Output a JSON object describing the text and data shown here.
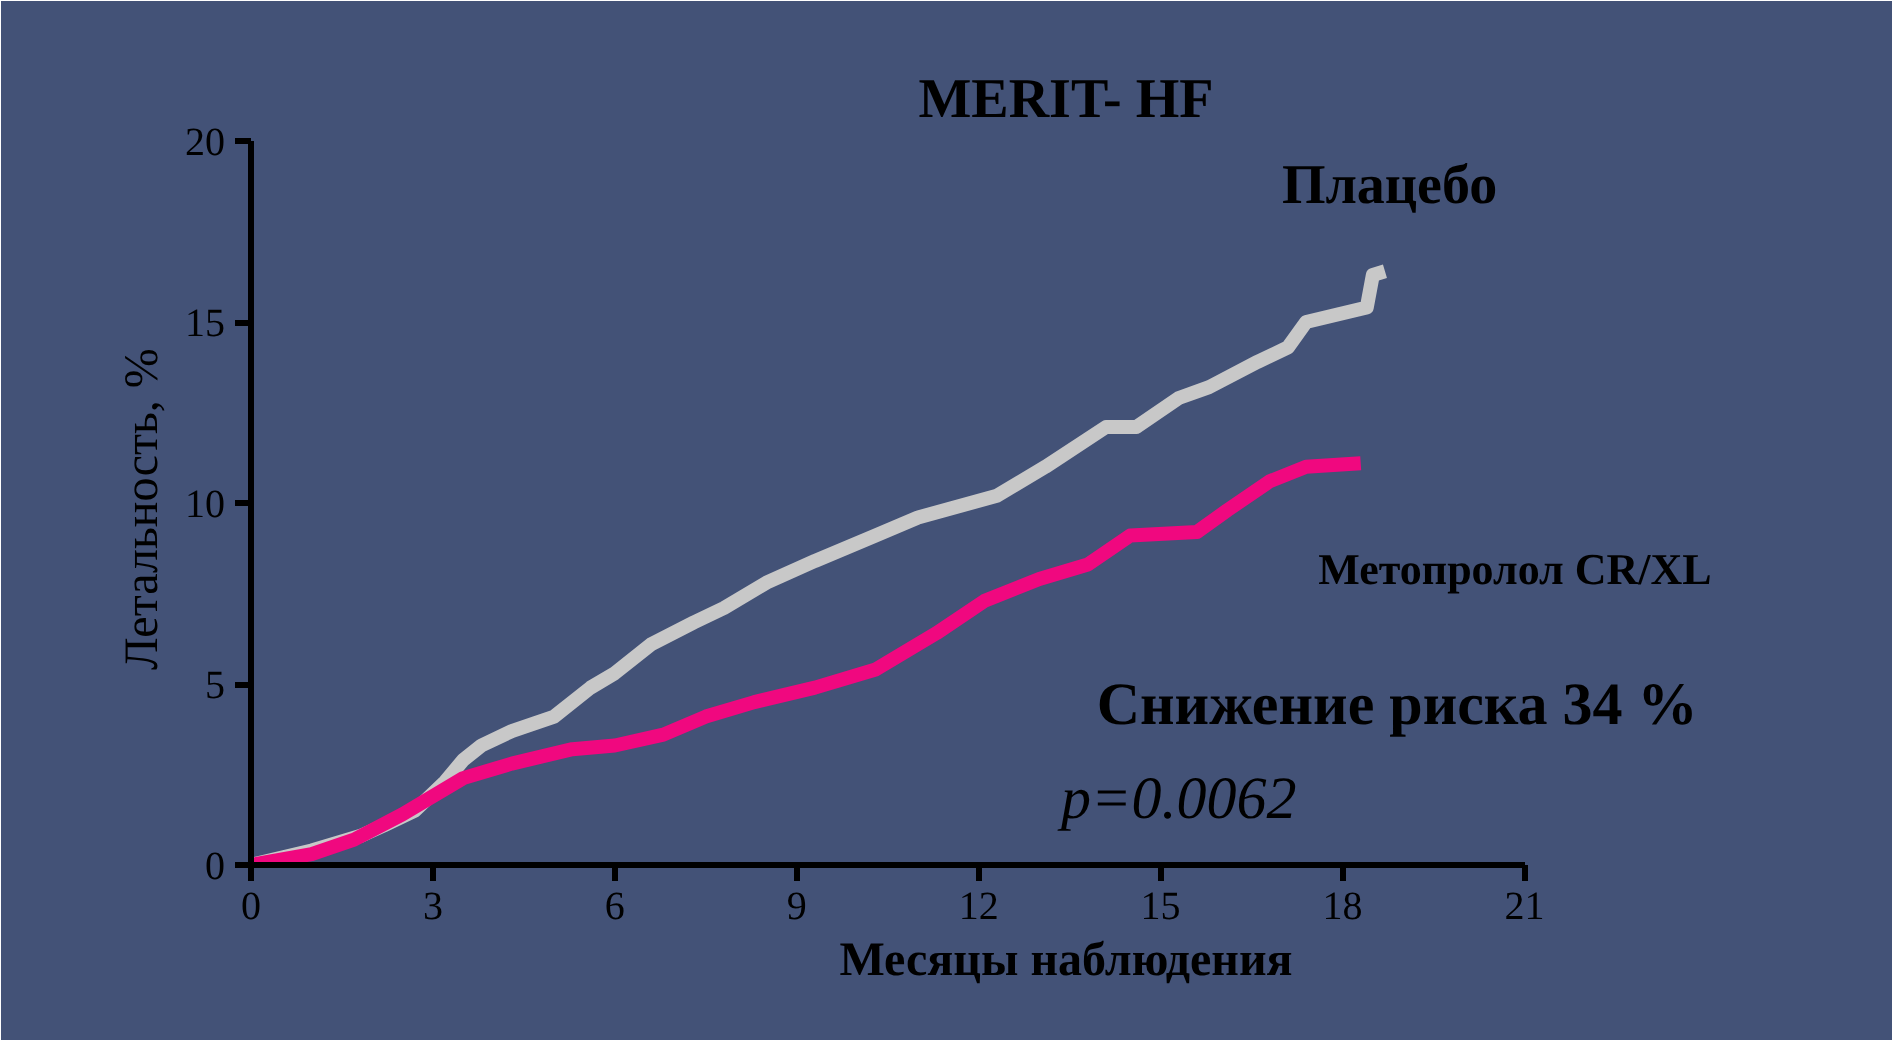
{
  "chart_data": {
    "type": "line",
    "title": "MERIT- HF",
    "xlabel": "Месяцы наблюдения",
    "ylabel": "Летальность,  %",
    "xlim": [
      0,
      21
    ],
    "xticks": [
      0,
      3,
      6,
      9,
      12,
      15,
      18,
      21
    ],
    "ylim": [
      0,
      20
    ],
    "yticks": [
      0,
      5,
      10,
      15,
      20
    ],
    "grid": false,
    "marker": "none",
    "line_style": "solid",
    "series": [
      {
        "name": "Плацебо",
        "color": "#c8c8c8",
        "x": [
          0,
          1,
          1.8,
          2.2,
          2.7,
          3.2,
          3.5,
          3.8,
          4.3,
          5,
          5.6,
          6,
          6.6,
          7.3,
          7.8,
          8.5,
          9.3,
          10.3,
          11,
          12.3,
          13.1,
          14.1,
          14.6,
          15.3,
          15.8,
          16.6,
          17.1,
          17.4,
          18.4,
          18.5,
          18.7
        ],
        "values": [
          0,
          0.4,
          0.8,
          1.1,
          1.5,
          2.3,
          2.9,
          3.3,
          3.7,
          4.1,
          4.9,
          5.3,
          6.1,
          6.7,
          7.1,
          7.8,
          8.4,
          9.1,
          9.6,
          10.2,
          11,
          12.1,
          12.1,
          12.9,
          13.2,
          13.9,
          14.3,
          15,
          15.4,
          16.3,
          16.4
        ]
      },
      {
        "name": "Метопролол CR/XL",
        "color": "#f0087f",
        "x": [
          0,
          1,
          1.7,
          2.5,
          3.5,
          4.3,
          5.3,
          6,
          6.8,
          7.5,
          8.3,
          9.3,
          10.3,
          11.3,
          12.1,
          13,
          13.8,
          14.5,
          15.6,
          16.1,
          16.8,
          17.4,
          18.3
        ],
        "values": [
          0,
          0.3,
          0.7,
          1.4,
          2.4,
          2.8,
          3.2,
          3.3,
          3.6,
          4.1,
          4.5,
          4.9,
          5.4,
          6.4,
          7.3,
          7.9,
          8.3,
          9.1,
          9.2,
          9.8,
          10.6,
          11,
          11.1
        ]
      }
    ],
    "annotations": [
      "Снижение риска 34 %",
      "p=0.0062"
    ]
  }
}
